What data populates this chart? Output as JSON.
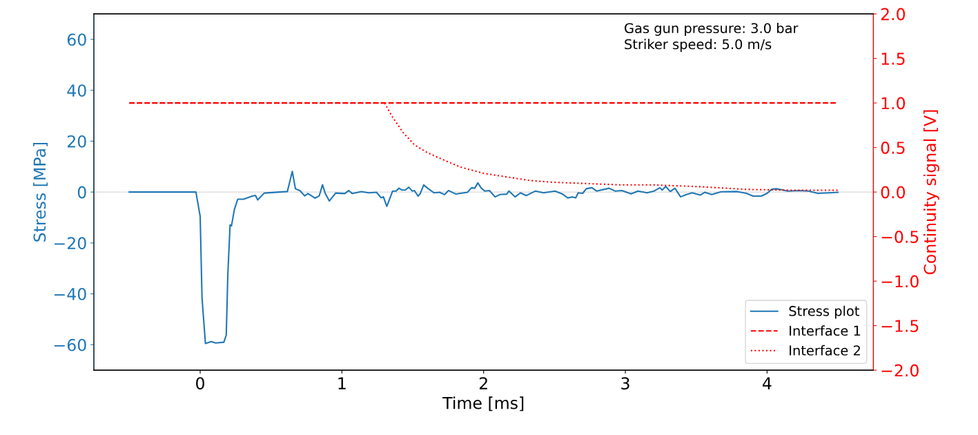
{
  "chart_data": {
    "type": "line",
    "xlabel": "Time [ms]",
    "ylabel": "Stress [MPa]",
    "y2label": "Continuity signal [V]",
    "xlim": [
      -0.75,
      4.75
    ],
    "xticks": [
      0,
      1,
      2,
      3,
      4
    ],
    "ylim": [
      -70,
      70
    ],
    "yticks": [
      {
        "value": -60,
        "label": "−60"
      },
      {
        "value": -40,
        "label": "−40"
      },
      {
        "value": -20,
        "label": "−20"
      },
      0,
      20,
      40,
      60
    ],
    "y2lim": [
      -2.0,
      2.0
    ],
    "y2ticks": [
      {
        "value": -2.0,
        "label": "−2.0"
      },
      {
        "value": -1.5,
        "label": "−1.5"
      },
      {
        "value": -1.0,
        "label": "−1.0"
      },
      {
        "value": -0.5,
        "label": "−0.5"
      },
      {
        "value": 0.0,
        "label": "0.0"
      },
      {
        "value": 0.5,
        "label": "0.5"
      },
      {
        "value": 1.0,
        "label": "1.0"
      },
      {
        "value": 1.5,
        "label": "1.5"
      },
      {
        "value": 2.0,
        "label": "2.0"
      }
    ],
    "grid": false,
    "legend": "bottom right",
    "annotations": [
      "Gas gun pressure: 3.0 bar\nStriker speed: 5.0 m/s"
    ],
    "ref_lines": [
      {
        "axis": "y",
        "value": 0,
        "color": "#808080",
        "line_style": "dotted"
      }
    ],
    "series": [
      {
        "name": "Stress plot",
        "color": "#1f77b4",
        "line_style": "solid",
        "x": [
          -0.5,
          -0.03,
          0.0,
          0.013,
          0.037,
          0.078,
          0.11,
          0.167,
          0.184,
          0.195,
          0.211,
          0.221,
          0.241,
          0.265,
          0.306,
          0.371,
          0.39,
          0.406,
          0.452,
          0.615,
          0.65,
          0.672,
          0.705,
          0.737,
          0.761,
          0.81,
          0.84,
          0.863,
          0.883,
          0.911,
          0.956,
          1.02,
          1.049,
          1.073,
          1.138,
          1.187,
          1.244,
          1.276,
          1.293,
          1.317,
          1.358,
          1.382,
          1.403,
          1.423,
          1.447,
          1.472,
          1.496,
          1.512,
          1.537,
          1.553,
          1.577,
          1.61,
          1.65,
          1.69,
          1.724,
          1.752,
          1.805,
          1.886,
          1.915,
          1.938,
          1.959,
          1.984,
          2.008,
          2.041,
          2.081,
          2.114,
          2.163,
          2.179,
          2.223,
          2.26,
          2.3,
          2.366,
          2.423,
          2.504,
          2.553,
          2.594,
          2.626,
          2.65,
          2.667,
          2.699,
          2.724,
          2.764,
          2.797,
          2.886,
          2.927,
          2.976,
          3.04,
          3.089,
          3.154,
          3.203,
          3.244,
          3.26,
          3.285,
          3.317,
          3.35,
          3.39,
          3.431,
          3.472,
          3.528,
          3.561,
          3.61,
          3.675,
          3.789,
          3.854,
          3.902,
          3.959,
          4.0,
          4.033,
          4.065,
          4.114,
          4.146,
          4.228,
          4.293,
          4.358,
          4.439,
          4.5
        ],
        "values": [
          0,
          0,
          -9.6,
          -41.6,
          -59.5,
          -58.8,
          -59.3,
          -59,
          -56.2,
          -32.5,
          -12.9,
          -13.3,
          -6.9,
          -2.8,
          -2.8,
          -1.5,
          -1.3,
          -3.1,
          -0.4,
          0.2,
          8.1,
          1.3,
          0.5,
          -1.5,
          -0.6,
          -2.4,
          -1.5,
          2.9,
          -0.6,
          -3.5,
          -0.4,
          -0.6,
          0.6,
          -0.6,
          0.2,
          -0.3,
          -0.1,
          -2.2,
          -1.9,
          -5.6,
          0.4,
          0.4,
          1.5,
          0.8,
          0.8,
          1.9,
          0.4,
          0.6,
          -1.6,
          -0.6,
          2.8,
          1.3,
          -0.3,
          -0.1,
          -1.0,
          0.6,
          -0.8,
          -0.1,
          1.7,
          1.5,
          3.6,
          1.5,
          0.4,
          0.6,
          -1.9,
          -1.0,
          -0.8,
          0.4,
          -1.9,
          -0.3,
          -1.4,
          0.4,
          -0.3,
          0.4,
          -0.7,
          -2.3,
          -1.9,
          -2.3,
          -0.3,
          -0.5,
          1.3,
          1.7,
          0.4,
          1.5,
          0.4,
          0.6,
          -0.7,
          0.4,
          -0.3,
          0.4,
          1.7,
          0.8,
          2.2,
          0.2,
          1.5,
          -1.9,
          -1.0,
          -0.3,
          -1.2,
          -0.1,
          -1.0,
          0.1,
          0.2,
          -0.5,
          -1.6,
          -1.6,
          -0.5,
          1.1,
          1.3,
          0.8,
          0.4,
          0.6,
          0.4,
          -0.5,
          -0.3,
          -0.1
        ]
      },
      {
        "name": "Interface 1",
        "color": "#ff0000",
        "line_style": "dashed",
        "axis": "y2",
        "x": [
          -0.5,
          4.5
        ],
        "values": [
          1.0,
          1.0
        ]
      },
      {
        "name": "Interface 2",
        "color": "#ff0000",
        "line_style": "dotted",
        "axis": "y2",
        "x": [
          -0.5,
          1.301,
          1.358,
          1.431,
          1.512,
          1.594,
          1.675,
          1.837,
          2.0,
          2.163,
          2.325,
          2.488,
          2.65,
          2.813,
          2.976,
          3.203,
          3.528,
          3.854,
          4.179,
          4.5
        ],
        "values": [
          1.0,
          1.0,
          0.84,
          0.67,
          0.53,
          0.45,
          0.39,
          0.28,
          0.21,
          0.17,
          0.13,
          0.11,
          0.1,
          0.09,
          0.08,
          0.08,
          0.06,
          0.03,
          0.02,
          0.02
        ]
      }
    ]
  }
}
